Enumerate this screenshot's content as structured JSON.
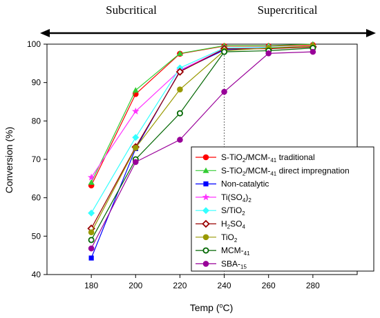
{
  "chart_data": {
    "type": "line",
    "title": "",
    "xlabel": "Temp (°C)",
    "ylabel": "Conversion (%)",
    "xlim": [
      160,
      300
    ],
    "ylim": [
      40,
      100
    ],
    "x_ticks": [
      180,
      200,
      220,
      240,
      260,
      280
    ],
    "y_ticks": [
      40,
      50,
      60,
      70,
      80,
      90,
      100
    ],
    "grid": false,
    "legend_position": "bottom-right",
    "divider_x": 240,
    "regions": {
      "left": "Subcritical",
      "right": "Supercritical"
    },
    "x": [
      180,
      200,
      220,
      240,
      260,
      280
    ],
    "series": [
      {
        "name": "S-TiO2/MCM-41 traditional",
        "color": "#ff0000",
        "marker": "circle",
        "values": [
          63.2,
          87.0,
          97.5,
          99.5,
          99.5,
          99.8
        ]
      },
      {
        "name": "S-TiO2/MCM-41 direct impregnation",
        "color": "#33cc33",
        "marker": "triangle",
        "values": [
          64.0,
          88.0,
          97.6,
          99.6,
          99.6,
          100.0
        ]
      },
      {
        "name": "Non-catalytic",
        "color": "#0000ff",
        "marker": "square",
        "values": [
          44.3,
          72.8,
          93.0,
          98.5,
          99.0,
          99.3
        ]
      },
      {
        "name": "Ti(SO4)2",
        "color": "#ff33ff",
        "marker": "star",
        "values": [
          65.3,
          82.5,
          93.2,
          98.8,
          99.1,
          99.5
        ]
      },
      {
        "name": "S/TiO2",
        "color": "#33ffff",
        "marker": "diamond",
        "values": [
          56.0,
          75.7,
          93.8,
          99.0,
          99.2,
          99.4
        ]
      },
      {
        "name": "H2SO4",
        "color": "#990000",
        "marker": "diamond-open",
        "values": [
          52.0,
          73.2,
          92.8,
          98.8,
          98.8,
          99.3
        ]
      },
      {
        "name": "TiO2",
        "color": "#999900",
        "marker": "circle",
        "values": [
          51.0,
          73.0,
          88.2,
          98.3,
          99.0,
          99.5
        ]
      },
      {
        "name": "MCM-41",
        "color": "#006600",
        "marker": "circle-open",
        "values": [
          49.0,
          70.0,
          82.0,
          98.0,
          98.3,
          99.0
        ]
      },
      {
        "name": "SBA-15",
        "color": "#990099",
        "marker": "circle",
        "values": [
          46.8,
          69.3,
          75.1,
          87.6,
          97.6,
          98.0
        ]
      }
    ]
  }
}
